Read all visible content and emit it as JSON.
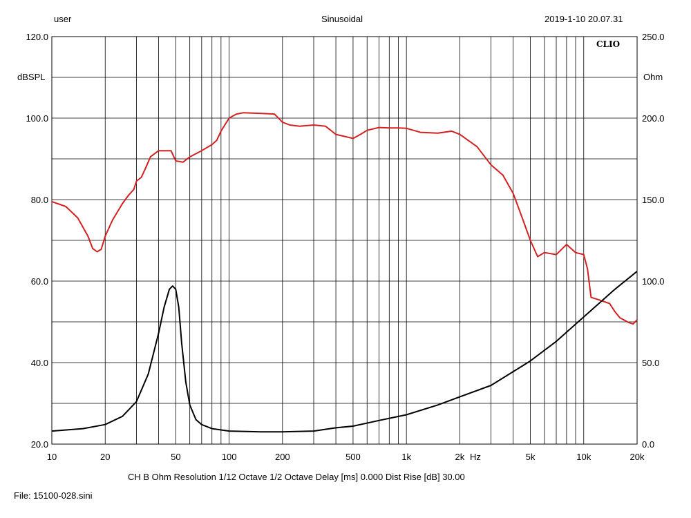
{
  "header": {
    "user": "user",
    "mode": "Sinusoidal",
    "timestamp": "2019-1-10 20.07.31"
  },
  "logo": "CLIO",
  "footer": {
    "info": "CH B   Ohm   Resolution 1/12 Octave   1/2 Octave   Delay [ms] 0.000    Dist Rise [dB] 30.00",
    "file": "File: 15100-028.sini"
  },
  "chart_data": {
    "type": "line",
    "title": "",
    "xlabel": "Hz",
    "ylabel": "dBSPL",
    "y2label": "Ohm",
    "xscale": "log",
    "xlim": [
      10,
      20000
    ],
    "ylim": [
      20,
      120
    ],
    "y2lim": [
      0,
      250
    ],
    "grid": true,
    "colors": {
      "spl": "#d42020",
      "impedance": "#000000",
      "grid": "#000000"
    },
    "x_ticks": [
      {
        "value": 10,
        "label": "10"
      },
      {
        "value": 20,
        "label": "20"
      },
      {
        "value": 50,
        "label": "50"
      },
      {
        "value": 100,
        "label": "100"
      },
      {
        "value": 200,
        "label": "200"
      },
      {
        "value": 500,
        "label": "500"
      },
      {
        "value": 1000,
        "label": "1k"
      },
      {
        "value": 2000,
        "label": "2k"
      },
      {
        "value": 5000,
        "label": "5k"
      },
      {
        "value": 10000,
        "label": "10k"
      },
      {
        "value": 20000,
        "label": "20k"
      }
    ],
    "y_ticks": [
      {
        "value": 120,
        "label": "120.0"
      },
      {
        "value": 100,
        "label": "100.0"
      },
      {
        "value": 80,
        "label": "80.0"
      },
      {
        "value": 60,
        "label": "60.0"
      },
      {
        "value": 40,
        "label": "40.0"
      },
      {
        "value": 20,
        "label": "20.0"
      }
    ],
    "y2_ticks": [
      {
        "value": 250,
        "label": "250.0"
      },
      {
        "value": 200,
        "label": "200.0"
      },
      {
        "value": 150,
        "label": "150.0"
      },
      {
        "value": 100,
        "label": "100.0"
      },
      {
        "value": 50,
        "label": "50.0"
      },
      {
        "value": 0,
        "label": "0.0"
      }
    ],
    "series": [
      {
        "axis": "left",
        "x": [
          10,
          12,
          14,
          16,
          17,
          18,
          19,
          20,
          22,
          25,
          27,
          29,
          30,
          32,
          34,
          36,
          40,
          44,
          47,
          50,
          55,
          60,
          70,
          80,
          85,
          90,
          100,
          110,
          120,
          140,
          160,
          180,
          200,
          220,
          250,
          300,
          350,
          400,
          450,
          500,
          550,
          600,
          700,
          800,
          900,
          1000,
          1200,
          1500,
          1800,
          2000,
          2500,
          3000,
          3500,
          4000,
          4500,
          5000,
          5500,
          6000,
          7000,
          8000,
          9000,
          10000,
          10500,
          11000,
          12000,
          14000,
          15000,
          16000,
          18000,
          19000,
          20000
        ],
        "y": [
          79.5,
          78.3,
          75.5,
          71.0,
          68.0,
          67.2,
          67.8,
          71.0,
          75.0,
          79.0,
          81.0,
          82.5,
          84.5,
          85.5,
          88.0,
          90.5,
          92.0,
          92.0,
          92.0,
          89.5,
          89.2,
          90.5,
          92.0,
          93.5,
          94.5,
          96.8,
          100.0,
          101.0,
          101.3,
          101.2,
          101.1,
          101.0,
          99.0,
          98.3,
          98.0,
          98.3,
          98.0,
          96.0,
          95.5,
          95.0,
          96.0,
          97.0,
          97.7,
          97.6,
          97.6,
          97.5,
          96.5,
          96.3,
          96.8,
          96.0,
          93.0,
          88.5,
          86.0,
          81.5,
          75.5,
          70.0,
          66.0,
          67.0,
          66.5,
          69.0,
          67.0,
          66.5,
          63.0,
          56.0,
          55.5,
          54.5,
          52.5,
          51.0,
          49.8,
          49.5,
          50.5
        ]
      },
      {
        "axis": "right",
        "x": [
          10,
          15,
          20,
          25,
          30,
          35,
          40,
          43,
          46,
          48,
          50,
          52,
          54,
          57,
          60,
          65,
          70,
          80,
          100,
          150,
          200,
          300,
          400,
          500,
          700,
          1000,
          1500,
          2000,
          3000,
          5000,
          7000,
          10000,
          15000,
          18000,
          20000
        ],
        "y": [
          8.0,
          9.5,
          12.0,
          17.0,
          26.0,
          43.0,
          68.0,
          84.0,
          95.0,
          97.0,
          95.0,
          84.0,
          62.0,
          38.0,
          24.0,
          15.0,
          12.0,
          9.5,
          8.0,
          7.5,
          7.5,
          8.0,
          10.0,
          11.0,
          14.5,
          18.0,
          24.0,
          29.0,
          36.0,
          51.0,
          63.0,
          78.0,
          95.0,
          102.0,
          106.0
        ]
      }
    ]
  }
}
